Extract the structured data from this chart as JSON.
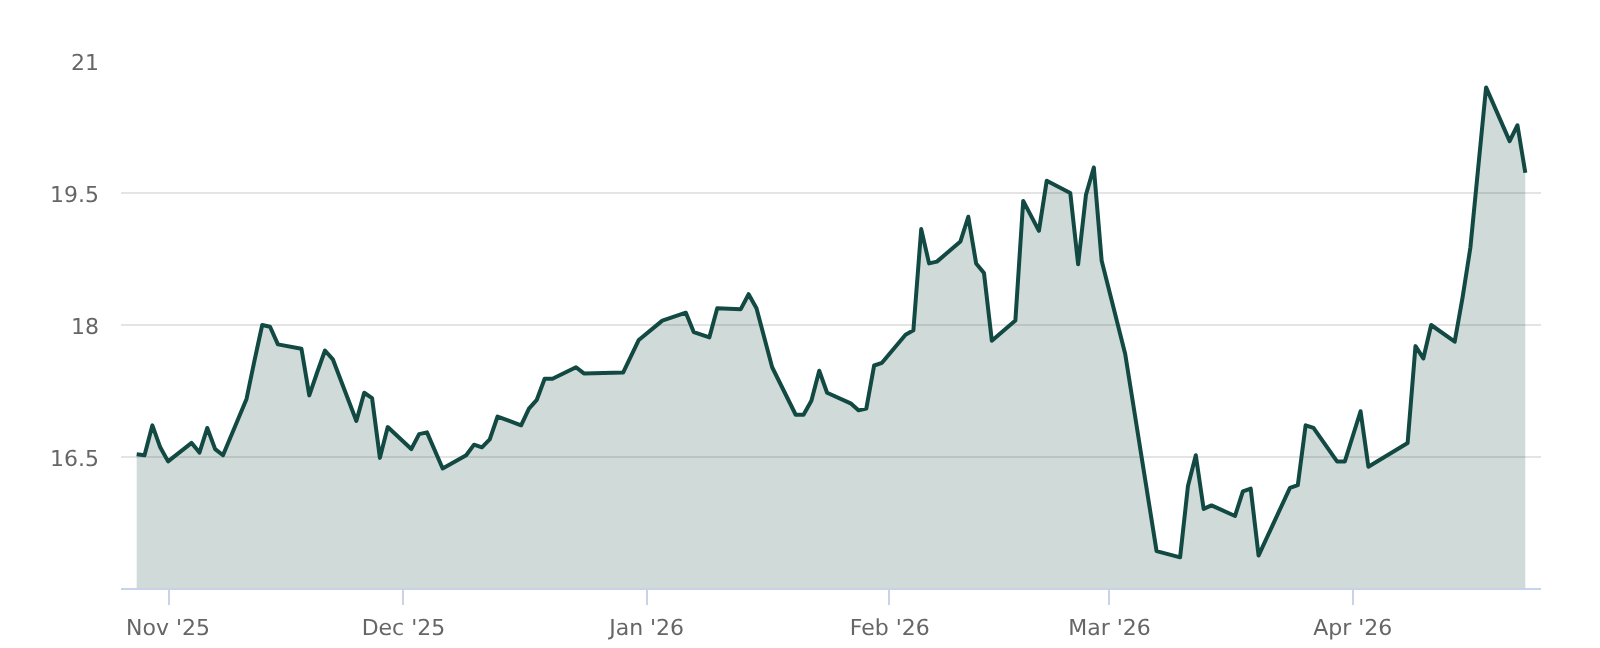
{
  "chart_data": {
    "type": "area",
    "x": [
      "2025-10-28",
      "2025-10-29",
      "2025-10-30",
      "2025-10-31",
      "2025-11-01",
      "2025-11-04",
      "2025-11-05",
      "2025-11-06",
      "2025-11-07",
      "2025-11-08",
      "2025-11-11",
      "2025-11-12",
      "2025-11-13",
      "2025-11-14",
      "2025-11-15",
      "2025-11-18",
      "2025-11-19",
      "2025-11-20",
      "2025-11-21",
      "2025-11-22",
      "2025-11-25",
      "2025-11-26",
      "2025-11-27",
      "2025-11-28",
      "2025-11-29",
      "2025-12-02",
      "2025-12-03",
      "2025-12-04",
      "2025-12-06",
      "2025-12-09",
      "2025-12-10",
      "2025-12-11",
      "2025-12-12",
      "2025-12-13",
      "2025-12-16",
      "2025-12-17",
      "2025-12-18",
      "2025-12-19",
      "2025-12-20",
      "2025-12-23",
      "2025-12-24",
      "2025-12-29",
      "2025-12-31",
      "2026-01-03",
      "2026-01-06",
      "2026-01-07",
      "2026-01-09",
      "2026-01-10",
      "2026-01-13",
      "2026-01-14",
      "2026-01-15",
      "2026-01-17",
      "2026-01-20",
      "2026-01-21",
      "2026-01-22",
      "2026-01-23",
      "2026-01-24",
      "2026-01-27",
      "2026-01-28",
      "2026-01-29",
      "2026-01-30",
      "2026-01-31",
      "2026-02-03",
      "2026-02-04",
      "2026-02-05",
      "2026-02-06",
      "2026-02-07",
      "2026-02-10",
      "2026-02-11",
      "2026-02-12",
      "2026-02-13",
      "2026-02-14",
      "2026-02-17",
      "2026-02-18",
      "2026-02-20",
      "2026-02-21",
      "2026-02-24",
      "2026-02-25",
      "2026-02-26",
      "2026-02-27",
      "2026-02-28",
      "2026-03-03",
      "2026-03-07",
      "2026-03-10",
      "2026-03-11",
      "2026-03-12",
      "2026-03-13",
      "2026-03-14",
      "2026-03-17",
      "2026-03-18",
      "2026-03-19",
      "2026-03-20",
      "2026-03-24",
      "2026-03-25",
      "2026-03-26",
      "2026-03-27",
      "2026-03-30",
      "2026-03-31",
      "2026-04-02",
      "2026-04-03",
      "2026-04-08",
      "2026-04-09",
      "2026-04-10",
      "2026-04-11",
      "2026-04-14",
      "2026-04-15",
      "2026-04-16",
      "2026-04-18",
      "2026-04-21",
      "2026-04-22",
      "2026-04-23"
    ],
    "series": [
      {
        "color": "#124a43",
        "values": [
          16.53,
          16.52,
          16.86,
          16.61,
          16.45,
          16.66,
          16.55,
          16.83,
          16.59,
          16.52,
          17.16,
          17.59,
          18.0,
          17.98,
          17.78,
          17.73,
          17.2,
          17.46,
          17.71,
          17.61,
          16.91,
          17.23,
          17.17,
          16.49,
          16.84,
          16.59,
          16.76,
          16.78,
          16.37,
          16.52,
          16.64,
          16.61,
          16.7,
          16.96,
          16.86,
          17.05,
          17.15,
          17.39,
          17.39,
          17.52,
          17.45,
          17.46,
          17.83,
          18.05,
          18.14,
          17.92,
          17.86,
          18.19,
          18.18,
          18.35,
          18.19,
          17.52,
          16.98,
          16.98,
          17.14,
          17.48,
          17.23,
          17.11,
          17.03,
          17.05,
          17.54,
          17.57,
          17.89,
          17.94,
          19.09,
          18.7,
          18.72,
          18.95,
          19.23,
          18.7,
          18.59,
          17.82,
          18.05,
          19.41,
          19.07,
          19.64,
          19.5,
          18.69,
          19.48,
          19.79,
          18.73,
          17.67,
          15.43,
          15.36,
          16.17,
          16.52,
          15.91,
          15.95,
          15.83,
          16.11,
          16.14,
          15.38,
          16.15,
          16.18,
          16.86,
          16.83,
          16.45,
          16.45,
          17.02,
          16.39,
          16.66,
          17.76,
          17.62,
          18.0,
          17.81,
          18.31,
          18.88,
          20.7,
          20.09,
          20.27,
          19.73
        ]
      }
    ],
    "xlim": [
      "2025-10-26",
      "2026-04-25"
    ],
    "xticks": [
      {
        "value": "2025-11-01",
        "label": "Nov '25"
      },
      {
        "value": "2025-12-01",
        "label": "Dec '25"
      },
      {
        "value": "2026-01-01",
        "label": "Jan '26"
      },
      {
        "value": "2026-02-01",
        "label": "Feb '26"
      },
      {
        "value": "2026-03-01",
        "label": "Mar '26"
      },
      {
        "value": "2026-04-01",
        "label": "Apr '26"
      }
    ],
    "ylim": [
      15,
      21
    ],
    "yticks": [
      16.5,
      18,
      19.5,
      21
    ],
    "grid": "y"
  }
}
